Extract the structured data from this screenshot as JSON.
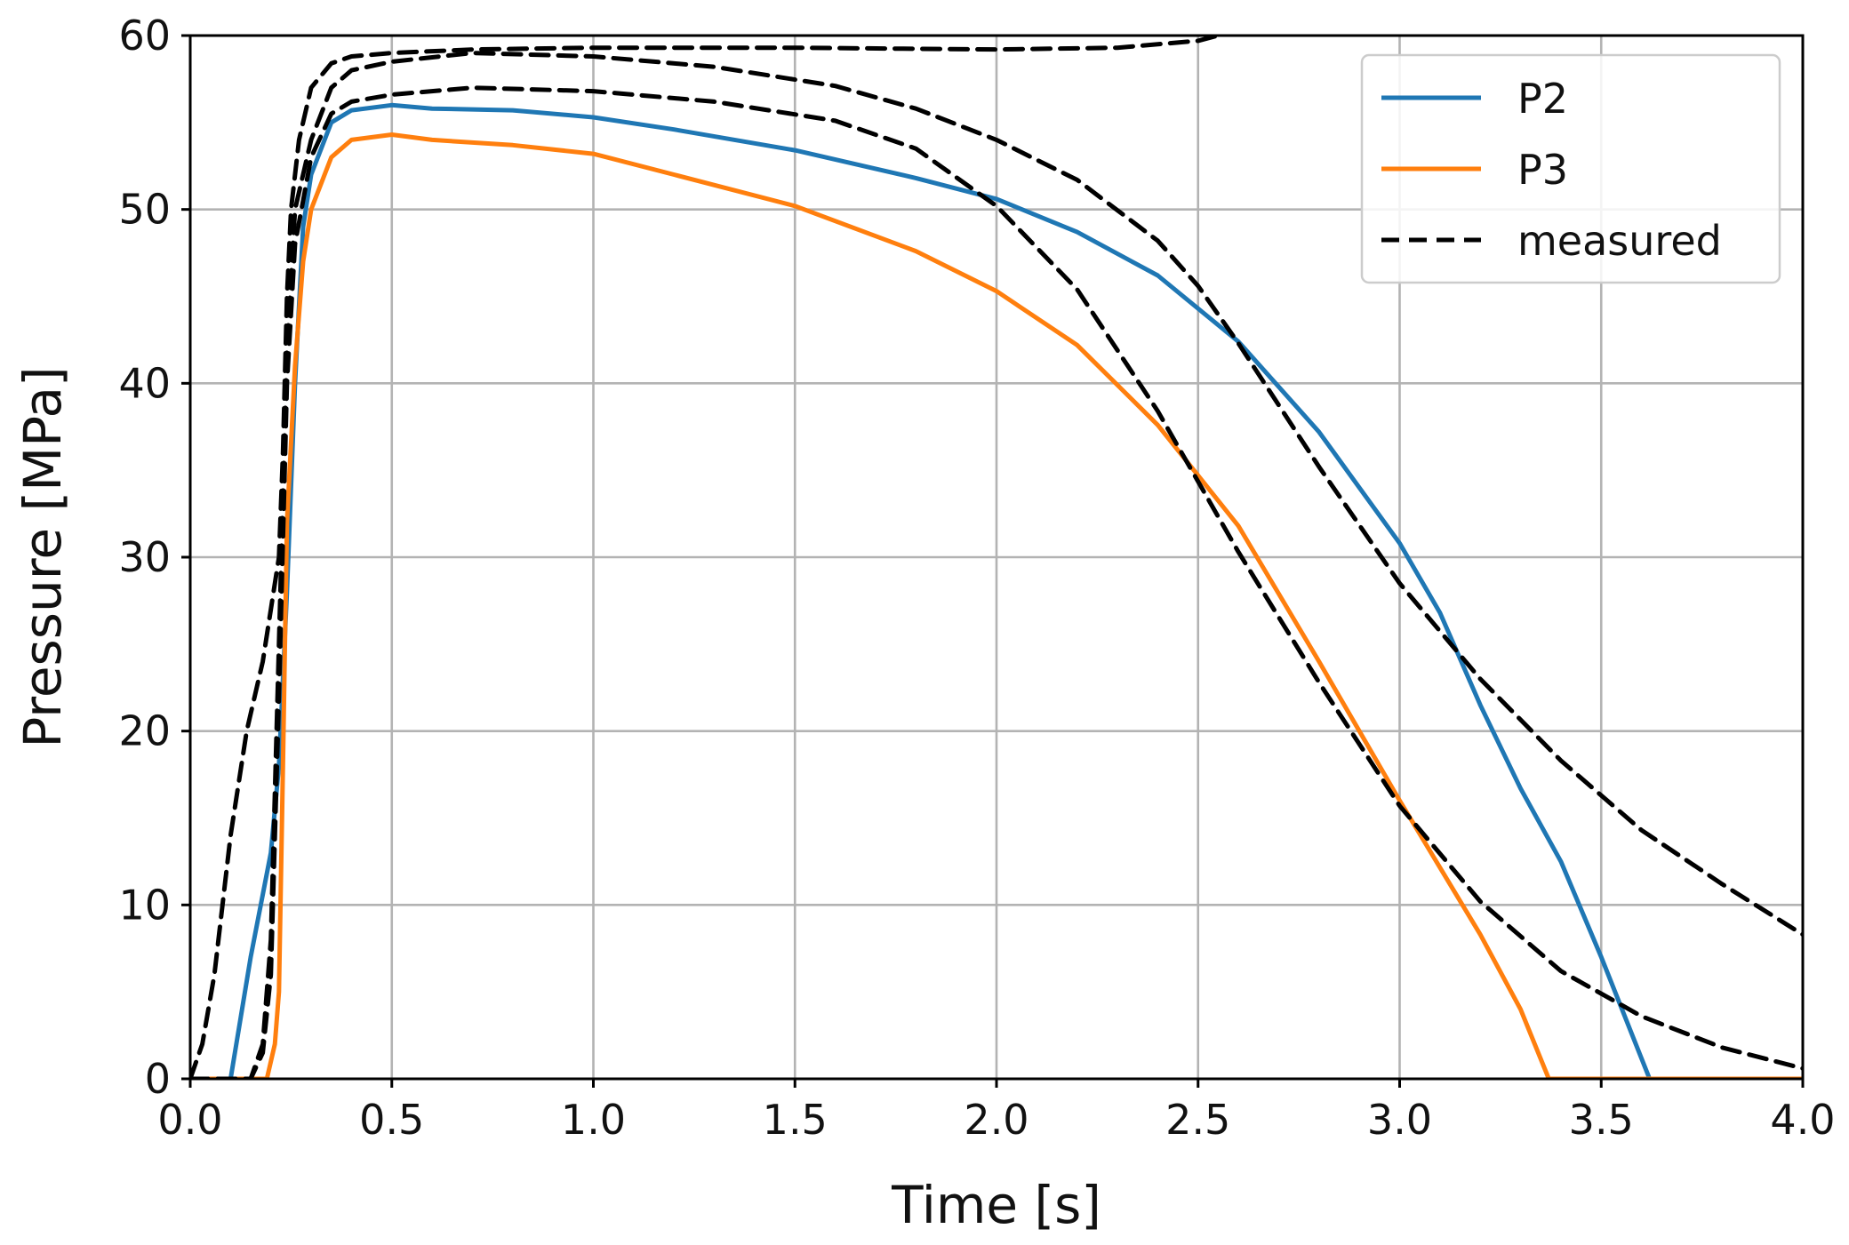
{
  "chart_data": {
    "type": "line",
    "xlabel": "Time [s]",
    "ylabel": "Pressure [MPa]",
    "xlim": [
      0.0,
      4.0
    ],
    "ylim": [
      0,
      60
    ],
    "x_ticks": [
      "0.0",
      "0.5",
      "1.0",
      "1.5",
      "2.0",
      "2.5",
      "3.0",
      "3.5",
      "4.0"
    ],
    "y_ticks": [
      "0",
      "10",
      "20",
      "30",
      "40",
      "50",
      "60"
    ],
    "grid": true,
    "legend_position": "top-right",
    "legend": [
      "P2",
      "P3",
      "measured"
    ],
    "series": [
      {
        "name": "P2",
        "color": "#1f77b4",
        "style": "solid",
        "x": [
          0.0,
          0.1,
          0.15,
          0.2,
          0.22,
          0.24,
          0.26,
          0.28,
          0.3,
          0.35,
          0.4,
          0.5,
          0.6,
          0.8,
          1.0,
          1.2,
          1.5,
          1.8,
          2.0,
          2.2,
          2.4,
          2.6,
          2.8,
          3.0,
          3.1,
          3.2,
          3.3,
          3.4,
          3.5,
          3.62,
          4.0
        ],
        "y": [
          0,
          0,
          7,
          13,
          18,
          28,
          40,
          49,
          52,
          55,
          55.7,
          56,
          55.8,
          55.7,
          55.3,
          54.6,
          53.4,
          51.8,
          50.6,
          48.7,
          46.2,
          42.4,
          37.2,
          30.8,
          26.8,
          21.5,
          16.7,
          12.5,
          7,
          0,
          0
        ]
      },
      {
        "name": "P3",
        "color": "#ff7f0e",
        "style": "solid",
        "x": [
          0.0,
          0.19,
          0.21,
          0.22,
          0.23,
          0.24,
          0.26,
          0.28,
          0.3,
          0.35,
          0.4,
          0.5,
          0.6,
          0.8,
          1.0,
          1.2,
          1.5,
          1.8,
          2.0,
          2.2,
          2.4,
          2.6,
          2.8,
          3.0,
          3.2,
          3.3,
          3.37,
          4.0
        ],
        "y": [
          0,
          0,
          2,
          5,
          18,
          32,
          41,
          47,
          50,
          53,
          54,
          54.3,
          54,
          53.7,
          53.2,
          52,
          50.2,
          47.6,
          45.3,
          42.2,
          37.6,
          31.8,
          24,
          16,
          8.3,
          4,
          0,
          0
        ]
      },
      {
        "name": "measured",
        "color": "#000000",
        "style": "dashed",
        "x": [
          0.0,
          0.03,
          0.06,
          0.1,
          0.14,
          0.18,
          0.2,
          0.22,
          0.23,
          0.24,
          0.25,
          0.27,
          0.3,
          0.35,
          0.4,
          0.5,
          0.7,
          1.0,
          1.5,
          2.0,
          2.3,
          2.5,
          2.55,
          2.6
        ],
        "y": [
          0,
          2,
          6,
          14,
          20,
          24,
          27,
          30,
          36,
          45,
          50,
          54,
          57,
          58.4,
          58.8,
          59,
          59.2,
          59.3,
          59.3,
          59.2,
          59.3,
          59.7,
          60,
          60.2
        ]
      },
      {
        "name": "",
        "color": "#000000",
        "style": "dashed",
        "x": [
          0.0,
          0.15,
          0.18,
          0.2,
          0.22,
          0.24,
          0.26,
          0.3,
          0.35,
          0.4,
          0.5,
          0.7,
          1.0,
          1.3,
          1.6,
          1.8,
          2.0,
          2.2,
          2.4,
          2.5,
          2.6,
          2.8,
          3.0,
          3.2,
          3.4,
          3.6,
          3.8,
          4.0
        ],
        "y": [
          0,
          0,
          2,
          8,
          25,
          42,
          50,
          54,
          57,
          58,
          58.5,
          59,
          58.8,
          58.2,
          57.1,
          55.8,
          54,
          51.7,
          48.2,
          45.6,
          42.3,
          35.2,
          28.5,
          23,
          18.3,
          14.3,
          11.2,
          8.3
        ]
      },
      {
        "name": "",
        "color": "#000000",
        "style": "dashed",
        "x": [
          0.0,
          0.15,
          0.18,
          0.2,
          0.22,
          0.24,
          0.26,
          0.3,
          0.35,
          0.4,
          0.5,
          0.7,
          1.0,
          1.3,
          1.6,
          1.8,
          2.0,
          2.2,
          2.4,
          2.6,
          2.8,
          3.0,
          3.2,
          3.4,
          3.6,
          3.8,
          4.0
        ],
        "y": [
          0,
          0,
          1.5,
          6,
          22,
          40,
          48,
          53,
          55.5,
          56.2,
          56.6,
          57,
          56.8,
          56.2,
          55.1,
          53.5,
          50.2,
          45.4,
          38.4,
          30.3,
          22.8,
          15.7,
          10.2,
          6.2,
          3.6,
          1.8,
          0.6
        ]
      }
    ]
  }
}
